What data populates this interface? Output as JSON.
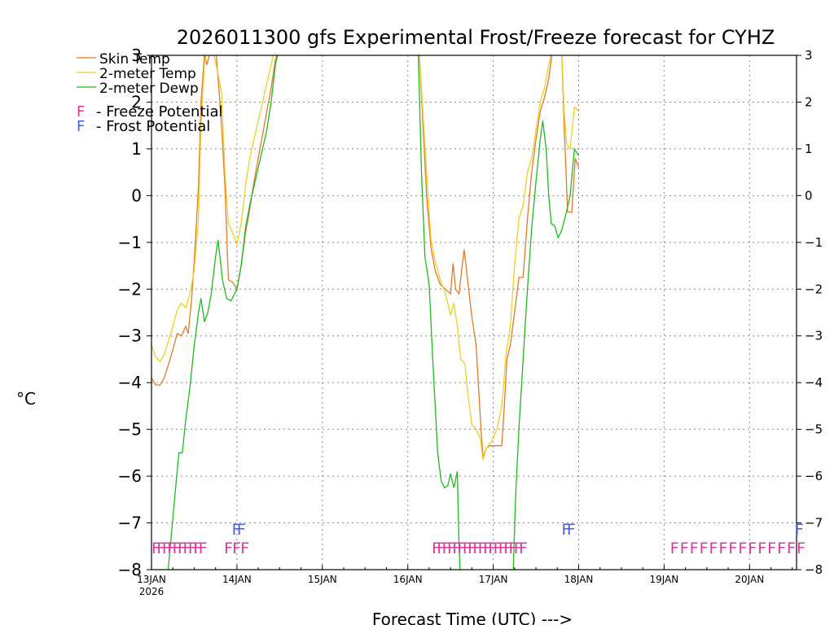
{
  "chart_data": {
    "type": "line",
    "title": "2026011300 gfs Experimental Frost/Freeze forecast for CYHZ",
    "ylabel": "°C",
    "xlabel": "Forecast Time (UTC) --->",
    "ylim": [
      -8,
      3
    ],
    "xlim_days": [
      13,
      20.55
    ],
    "yticks": [
      "3",
      "2",
      "1",
      "0",
      "-1",
      "-2",
      "-3",
      "-4",
      "-5",
      "-6",
      "-7",
      "-8"
    ],
    "xticks": [
      {
        "day": 13,
        "label": "13JAN",
        "sublabel": "2026"
      },
      {
        "day": 14,
        "label": "14JAN",
        "sublabel": ""
      },
      {
        "day": 15,
        "label": "15JAN",
        "sublabel": ""
      },
      {
        "day": 16,
        "label": "16JAN",
        "sublabel": ""
      },
      {
        "day": 17,
        "label": "17JAN",
        "sublabel": ""
      },
      {
        "day": 18,
        "label": "18JAN",
        "sublabel": ""
      },
      {
        "day": 19,
        "label": "19JAN",
        "sublabel": ""
      },
      {
        "day": 20,
        "label": "20JAN",
        "sublabel": ""
      }
    ],
    "legend": [
      {
        "label": "Skin Temp",
        "color": "#e07a2a"
      },
      {
        "label": "2-meter Temp",
        "color": "#e8d22a"
      },
      {
        "label": "2-meter Dewp",
        "color": "#22b822"
      }
    ],
    "potential_legend": [
      {
        "mark": "F",
        "label": "- Freeze Potential",
        "color": "#d63c9a"
      },
      {
        "mark": "F",
        "label": "- Frost Potential",
        "color": "#4a5fd0"
      }
    ],
    "series": [
      {
        "name": "Skin Temp",
        "color": "#e07a2a",
        "points": [
          [
            13.0,
            -3.9
          ],
          [
            13.05,
            -4.05
          ],
          [
            13.1,
            -4.05
          ],
          [
            13.15,
            -3.9
          ],
          [
            13.2,
            -3.6
          ],
          [
            13.25,
            -3.3
          ],
          [
            13.3,
            -2.95
          ],
          [
            13.35,
            -3.0
          ],
          [
            13.4,
            -2.8
          ],
          [
            13.43,
            -2.95
          ],
          [
            13.47,
            -2.2
          ],
          [
            13.5,
            -1.4
          ],
          [
            13.55,
            0.2
          ],
          [
            13.58,
            2.0
          ],
          [
            13.62,
            3.0
          ],
          [
            13.65,
            2.8
          ],
          [
            13.7,
            3.2
          ],
          [
            13.75,
            3.2
          ],
          [
            13.78,
            2.5
          ],
          [
            13.82,
            1.5
          ],
          [
            13.86,
            0.2
          ],
          [
            13.9,
            -1.8
          ],
          [
            13.95,
            -1.85
          ],
          [
            14.0,
            -2.0
          ],
          [
            14.05,
            -1.5
          ],
          [
            14.1,
            -0.8
          ],
          [
            14.15,
            -0.3
          ],
          [
            14.2,
            0.3
          ],
          [
            14.25,
            0.8
          ],
          [
            14.3,
            1.3
          ],
          [
            14.35,
            1.8
          ],
          [
            14.4,
            2.3
          ],
          [
            14.45,
            2.9
          ],
          [
            14.5,
            3.2
          ]
        ]
      },
      {
        "name": "2-meter Temp",
        "color": "#e8d22a",
        "points": [
          [
            13.0,
            -3.2
          ],
          [
            13.05,
            -3.45
          ],
          [
            13.1,
            -3.55
          ],
          [
            13.15,
            -3.4
          ],
          [
            13.2,
            -3.1
          ],
          [
            13.25,
            -2.8
          ],
          [
            13.3,
            -2.45
          ],
          [
            13.35,
            -2.3
          ],
          [
            13.4,
            -2.4
          ],
          [
            13.45,
            -2.1
          ],
          [
            13.5,
            -1.6
          ],
          [
            13.55,
            -0.5
          ],
          [
            13.58,
            1.5
          ],
          [
            13.62,
            2.8
          ],
          [
            13.66,
            3.2
          ],
          [
            13.72,
            3.1
          ],
          [
            13.78,
            2.6
          ],
          [
            13.82,
            2.2
          ],
          [
            13.86,
            0.5
          ],
          [
            13.9,
            -0.6
          ],
          [
            13.95,
            -0.8
          ],
          [
            14.0,
            -1.05
          ],
          [
            14.05,
            -0.6
          ],
          [
            14.1,
            0.2
          ],
          [
            14.15,
            0.8
          ],
          [
            14.2,
            1.2
          ],
          [
            14.25,
            1.6
          ],
          [
            14.3,
            2.0
          ],
          [
            14.35,
            2.4
          ],
          [
            14.4,
            2.8
          ],
          [
            14.45,
            3.2
          ]
        ]
      },
      {
        "name": "2-meter Dewp",
        "color": "#22b822",
        "points": [
          [
            13.18,
            -8.3
          ],
          [
            13.22,
            -7.5
          ],
          [
            13.27,
            -6.5
          ],
          [
            13.32,
            -5.5
          ],
          [
            13.36,
            -5.5
          ],
          [
            13.4,
            -4.8
          ],
          [
            13.45,
            -4.1
          ],
          [
            13.5,
            -3.2
          ],
          [
            13.55,
            -2.5
          ],
          [
            13.58,
            -2.2
          ],
          [
            13.62,
            -2.7
          ],
          [
            13.66,
            -2.5
          ],
          [
            13.7,
            -2.1
          ],
          [
            13.75,
            -1.3
          ],
          [
            13.78,
            -0.95
          ],
          [
            13.83,
            -1.8
          ],
          [
            13.88,
            -2.2
          ],
          [
            13.93,
            -2.25
          ],
          [
            14.0,
            -2.0
          ],
          [
            14.05,
            -1.5
          ],
          [
            14.1,
            -0.7
          ],
          [
            14.15,
            -0.2
          ],
          [
            14.2,
            0.2
          ],
          [
            14.25,
            0.6
          ],
          [
            14.3,
            1.0
          ],
          [
            14.35,
            1.4
          ],
          [
            14.4,
            2.0
          ],
          [
            14.45,
            2.8
          ],
          [
            14.5,
            3.2
          ]
        ]
      },
      {
        "name": "Skin Temp",
        "color": "#e07a2a",
        "points": [
          [
            16.13,
            3.2
          ],
          [
            16.17,
            1.8
          ],
          [
            16.22,
            0.0
          ],
          [
            16.27,
            -1.1
          ],
          [
            16.32,
            -1.6
          ],
          [
            16.38,
            -1.9
          ],
          [
            16.44,
            -2.0
          ],
          [
            16.5,
            -2.1
          ],
          [
            16.53,
            -1.45
          ],
          [
            16.56,
            -2.0
          ],
          [
            16.6,
            -2.1
          ],
          [
            16.63,
            -1.6
          ],
          [
            16.66,
            -1.15
          ],
          [
            16.7,
            -1.8
          ],
          [
            16.75,
            -2.6
          ],
          [
            16.8,
            -3.2
          ],
          [
            16.85,
            -4.8
          ],
          [
            16.88,
            -5.6
          ],
          [
            16.92,
            -5.4
          ],
          [
            16.96,
            -5.35
          ],
          [
            17.0,
            -5.35
          ],
          [
            17.05,
            -5.35
          ],
          [
            17.1,
            -5.35
          ],
          [
            17.13,
            -4.5
          ],
          [
            17.16,
            -3.5
          ],
          [
            17.2,
            -3.2
          ],
          [
            17.25,
            -2.5
          ],
          [
            17.3,
            -1.75
          ],
          [
            17.35,
            -1.75
          ],
          [
            17.4,
            -0.5
          ],
          [
            17.45,
            0.5
          ],
          [
            17.5,
            1.2
          ],
          [
            17.55,
            1.8
          ],
          [
            17.6,
            2.1
          ],
          [
            17.65,
            2.5
          ],
          [
            17.7,
            3.2
          ],
          [
            17.72,
            3.3
          ],
          [
            17.8,
            3.2
          ],
          [
            17.83,
            1.5
          ],
          [
            17.87,
            -0.35
          ],
          [
            17.92,
            -0.35
          ],
          [
            17.96,
            0.8
          ],
          [
            18.0,
            0.6
          ]
        ]
      },
      {
        "name": "2-meter Temp",
        "color": "#e8d22a",
        "points": [
          [
            16.13,
            3.2
          ],
          [
            16.17,
            2.0
          ],
          [
            16.22,
            0.5
          ],
          [
            16.27,
            -0.9
          ],
          [
            16.32,
            -1.4
          ],
          [
            16.38,
            -1.8
          ],
          [
            16.44,
            -2.1
          ],
          [
            16.5,
            -2.55
          ],
          [
            16.54,
            -2.3
          ],
          [
            16.58,
            -2.8
          ],
          [
            16.62,
            -3.5
          ],
          [
            16.67,
            -3.6
          ],
          [
            16.7,
            -4.2
          ],
          [
            16.75,
            -4.9
          ],
          [
            16.8,
            -5.0
          ],
          [
            16.85,
            -5.2
          ],
          [
            16.88,
            -5.65
          ],
          [
            16.92,
            -5.4
          ],
          [
            16.96,
            -5.3
          ],
          [
            17.0,
            -5.2
          ],
          [
            17.05,
            -4.95
          ],
          [
            17.1,
            -4.5
          ],
          [
            17.15,
            -3.4
          ],
          [
            17.2,
            -2.8
          ],
          [
            17.25,
            -1.5
          ],
          [
            17.3,
            -0.5
          ],
          [
            17.35,
            -0.2
          ],
          [
            17.4,
            0.5
          ],
          [
            17.45,
            0.8
          ],
          [
            17.5,
            1.4
          ],
          [
            17.55,
            2.0
          ],
          [
            17.6,
            2.3
          ],
          [
            17.65,
            2.8
          ],
          [
            17.7,
            3.2
          ],
          [
            17.8,
            3.2
          ],
          [
            17.83,
            1.8
          ],
          [
            17.86,
            1.1
          ],
          [
            17.9,
            1.0
          ],
          [
            17.95,
            1.9
          ],
          [
            18.0,
            1.8
          ]
        ]
      },
      {
        "name": "2-meter Dewp",
        "color": "#22b822",
        "points": [
          [
            16.12,
            3.2
          ],
          [
            16.16,
            0.5
          ],
          [
            16.2,
            -1.3
          ],
          [
            16.25,
            -1.9
          ],
          [
            16.3,
            -3.8
          ],
          [
            16.35,
            -5.5
          ],
          [
            16.39,
            -6.1
          ],
          [
            16.43,
            -6.25
          ],
          [
            16.47,
            -6.2
          ],
          [
            16.5,
            -5.95
          ],
          [
            16.54,
            -6.25
          ],
          [
            16.58,
            -5.9
          ],
          [
            16.6,
            -7.5
          ],
          [
            16.62,
            -8.3
          ],
          [
            17.23,
            -8.3
          ],
          [
            17.26,
            -6.5
          ],
          [
            17.3,
            -5.0
          ],
          [
            17.35,
            -3.5
          ],
          [
            17.4,
            -2.0
          ],
          [
            17.45,
            -0.7
          ],
          [
            17.5,
            0.3
          ],
          [
            17.55,
            1.2
          ],
          [
            17.58,
            1.6
          ],
          [
            17.62,
            1.0
          ],
          [
            17.65,
            0.0
          ],
          [
            17.68,
            -0.6
          ],
          [
            17.72,
            -0.65
          ],
          [
            17.76,
            -0.9
          ],
          [
            17.8,
            -0.75
          ],
          [
            17.85,
            -0.4
          ],
          [
            17.9,
            0.0
          ],
          [
            17.95,
            1.0
          ],
          [
            18.0,
            0.85
          ]
        ]
      }
    ],
    "freeze_marks": [
      {
        "start": 13.0,
        "end": 13.55,
        "count": 10,
        "label": "F"
      },
      {
        "start": 13.85,
        "end": 14.04,
        "count": 3,
        "label": "F"
      },
      {
        "start": 16.28,
        "end": 17.3,
        "count": 18,
        "label": "F"
      },
      {
        "start": 19.07,
        "end": 20.55,
        "count": 14,
        "label": "F"
      }
    ],
    "frost_marks": [
      {
        "start": 13.94,
        "end": 14.0,
        "count": 2,
        "label": "F"
      },
      {
        "start": 17.8,
        "end": 17.86,
        "count": 2,
        "label": "F"
      },
      {
        "start": 20.53,
        "end": 20.53,
        "count": 1,
        "label": "F"
      }
    ]
  }
}
